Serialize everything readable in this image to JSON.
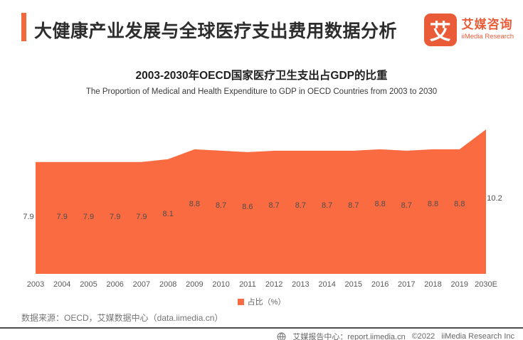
{
  "header": {
    "title": "大健康产业发展与全球医疗支出费用数据分析",
    "logo": {
      "glyph": "艾",
      "name_cn": "艾媒咨询",
      "name_en": "iiMedia Research"
    }
  },
  "chart": {
    "title": "2003-2030年OECD国家医疗卫生支出占GDP的比重",
    "subtitle": "The Proportion of Medical and Health Expenditure to GDP in OECD Countries from 2003 to 2030",
    "legend_label": "占比（%）"
  },
  "chart_data": {
    "type": "area",
    "title": "2003-2030年OECD国家医疗卫生支出占GDP的比重",
    "categories": [
      "2003",
      "2004",
      "2005",
      "2006",
      "2007",
      "2008",
      "2009",
      "2010",
      "2011",
      "2012",
      "2013",
      "2014",
      "2015",
      "2016",
      "2017",
      "2018",
      "2019",
      "2030E"
    ],
    "values": [
      7.9,
      7.9,
      7.9,
      7.9,
      7.9,
      8.1,
      8.8,
      8.7,
      8.6,
      8.7,
      8.7,
      8.7,
      8.7,
      8.8,
      8.7,
      8.8,
      8.8,
      10.2
    ],
    "series_name": "占比（%）",
    "xlabel": "",
    "ylabel": "",
    "ylim": [
      0,
      10.2
    ],
    "grid": false,
    "legend_position": "bottom",
    "value_labels_shown": true
  },
  "footer": {
    "source": "数据来源：OECD，艾媒数据中心（data.iimedia.cn）",
    "report_label": "艾媒报告中心：report.iimedia.cn",
    "copyright": "©2022",
    "company": "iiMedia Research Inc"
  },
  "colors": {
    "brand_orange": "#EA5C38",
    "accent_bar": "#F2693E",
    "area_fill": "#FB6B41",
    "value_label": "#4D4D4D",
    "axis_label": "#595959",
    "legend_text": "#666666",
    "source_text": "#757575",
    "divider": "#4D4D4D",
    "bottom_text": "#666666"
  }
}
